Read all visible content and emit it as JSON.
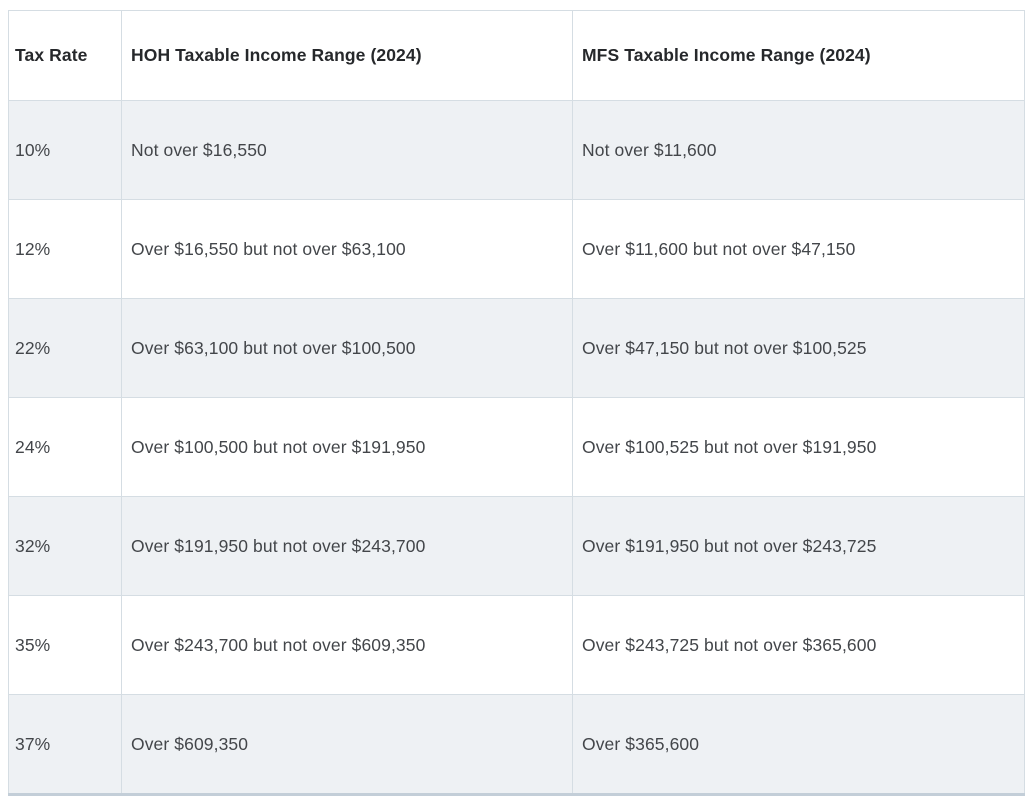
{
  "chart_data": {
    "type": "table",
    "columns": [
      "Tax Rate",
      "HOH Taxable Income Range (2024)",
      "MFS Taxable Income Range (2024)"
    ],
    "rows": [
      [
        "10%",
        "Not over $16,550",
        "Not over $11,600"
      ],
      [
        "12%",
        "Over $16,550 but not over $63,100",
        "Over $11,600 but not over $47,150"
      ],
      [
        "22%",
        "Over $63,100 but not over $100,500",
        "Over $47,150 but not over $100,525"
      ],
      [
        "24%",
        "Over $100,500 but not over $191,950",
        "Over $100,525 but not over $191,950"
      ],
      [
        "32%",
        "Over $191,950 but not over $243,700",
        "Over $191,950 but not over $243,725"
      ],
      [
        "35%",
        "Over $243,700 but not over $609,350",
        "Over $243,725 but not over $365,600"
      ],
      [
        "37%",
        "Over $609,350",
        "Over $365,600"
      ]
    ],
    "layout": {
      "striped_rows": "odd",
      "grid": true,
      "legend": "none"
    }
  },
  "colors": {
    "stripe": "#eef1f4",
    "border": "#d5dde3",
    "bottom_border": "#c3ced8",
    "header_text": "#26282b",
    "body_text": "#43464a"
  }
}
